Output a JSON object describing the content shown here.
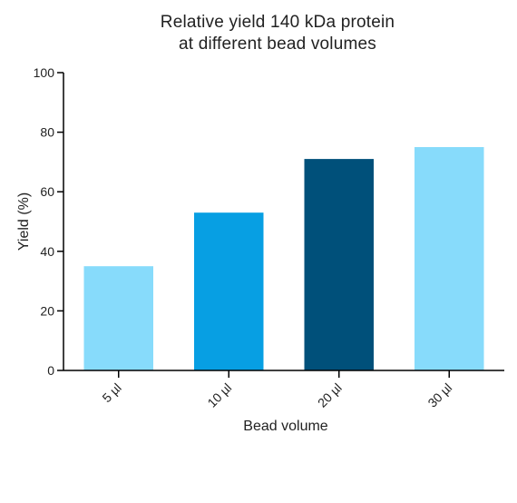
{
  "chart_data": {
    "type": "bar",
    "title_lines": [
      "Relative yield 140 kDa protein",
      "at different bead volumes"
    ],
    "xlabel": "Bead volume",
    "ylabel": "Yield (%)",
    "categories": [
      "5 µl",
      "10 µl",
      "20 µl",
      "30 µl"
    ],
    "values": [
      35,
      53,
      71,
      75
    ],
    "bar_colors": [
      "#87dbfb",
      "#079fe3",
      "#00507a",
      "#87dbfb"
    ],
    "ylim": [
      0,
      100
    ],
    "yticks": [
      0,
      20,
      40,
      60,
      80,
      100
    ],
    "grid": false,
    "legend": "none"
  }
}
